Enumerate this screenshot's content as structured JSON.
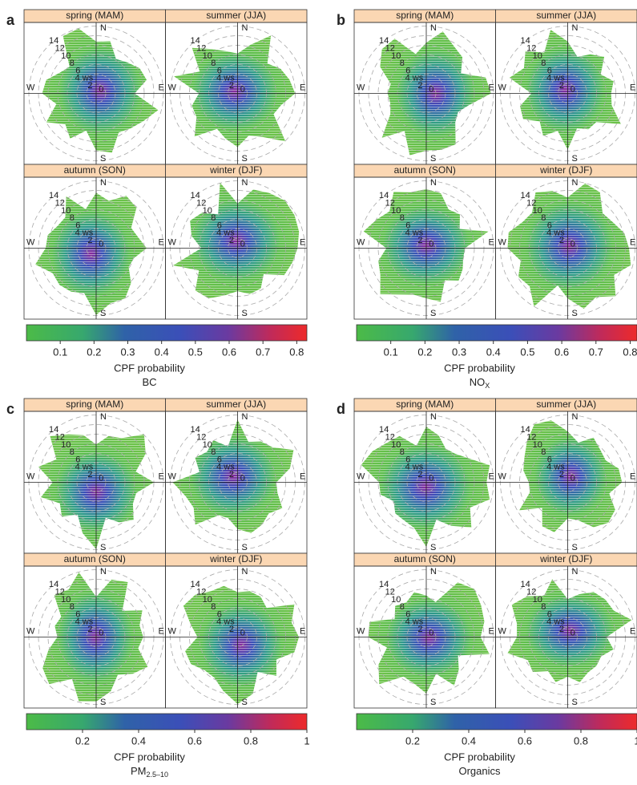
{
  "chart_data": [
    {
      "type": "polar",
      "letter": "a",
      "facets": [
        "spring (MAM)",
        "summer (JJA)",
        "autumn (SON)",
        "winter (DJF)"
      ],
      "compass": [
        "N",
        "E",
        "S",
        "W"
      ],
      "rings": [
        0,
        2,
        {
          "value": 4,
          "label": "4 ws"
        },
        6,
        8,
        10,
        12,
        14
      ],
      "colorbar_label": "CPF  probability",
      "variable": {
        "main": "BC"
      },
      "clim": [
        0,
        0.83
      ],
      "cticks": [
        0.1,
        0.2,
        0.3,
        0.4,
        0.5,
        0.6,
        0.7,
        0.8
      ]
    },
    {
      "type": "polar",
      "letter": "b",
      "facets": [
        "spring (MAM)",
        "summer (JJA)",
        "autumn (SON)",
        "winter (DJF)"
      ],
      "compass": [
        "N",
        "E",
        "S",
        "W"
      ],
      "rings": [
        0,
        2,
        {
          "value": 4,
          "label": "4 ws"
        },
        6,
        8,
        10,
        12,
        14
      ],
      "colorbar_label": "CPF  probability",
      "variable": {
        "main": "NO",
        "sub": "X"
      },
      "clim": [
        0,
        0.82
      ],
      "cticks": [
        0.1,
        0.2,
        0.3,
        0.4,
        0.5,
        0.6,
        0.7,
        0.8
      ]
    },
    {
      "type": "polar",
      "letter": "c",
      "facets": [
        "spring (MAM)",
        "summer (JJA)",
        "autumn (SON)",
        "winter (DJF)"
      ],
      "compass": [
        "N",
        "E",
        "S",
        "W"
      ],
      "rings": [
        0,
        2,
        {
          "value": 4,
          "label": "4 ws"
        },
        6,
        8,
        10,
        12,
        14
      ],
      "colorbar_label": "CPF  probability",
      "variable": {
        "main": "PM",
        "sub": "2.5–10"
      },
      "clim": [
        0,
        1
      ],
      "cticks": [
        0.2,
        0.4,
        0.6,
        0.8,
        1
      ]
    },
    {
      "type": "polar",
      "letter": "d",
      "facets": [
        "spring (MAM)",
        "summer (JJA)",
        "autumn (SON)",
        "winter (DJF)"
      ],
      "compass": [
        "N",
        "E",
        "S",
        "W"
      ],
      "rings": [
        0,
        2,
        {
          "value": 4,
          "label": "4 ws"
        },
        6,
        8,
        10,
        12,
        14
      ],
      "colorbar_label": "CPF  probability",
      "variable": {
        "main": "Organics"
      },
      "clim": [
        0,
        1
      ],
      "cticks": [
        0.2,
        0.4,
        0.6,
        0.8,
        1
      ]
    }
  ]
}
